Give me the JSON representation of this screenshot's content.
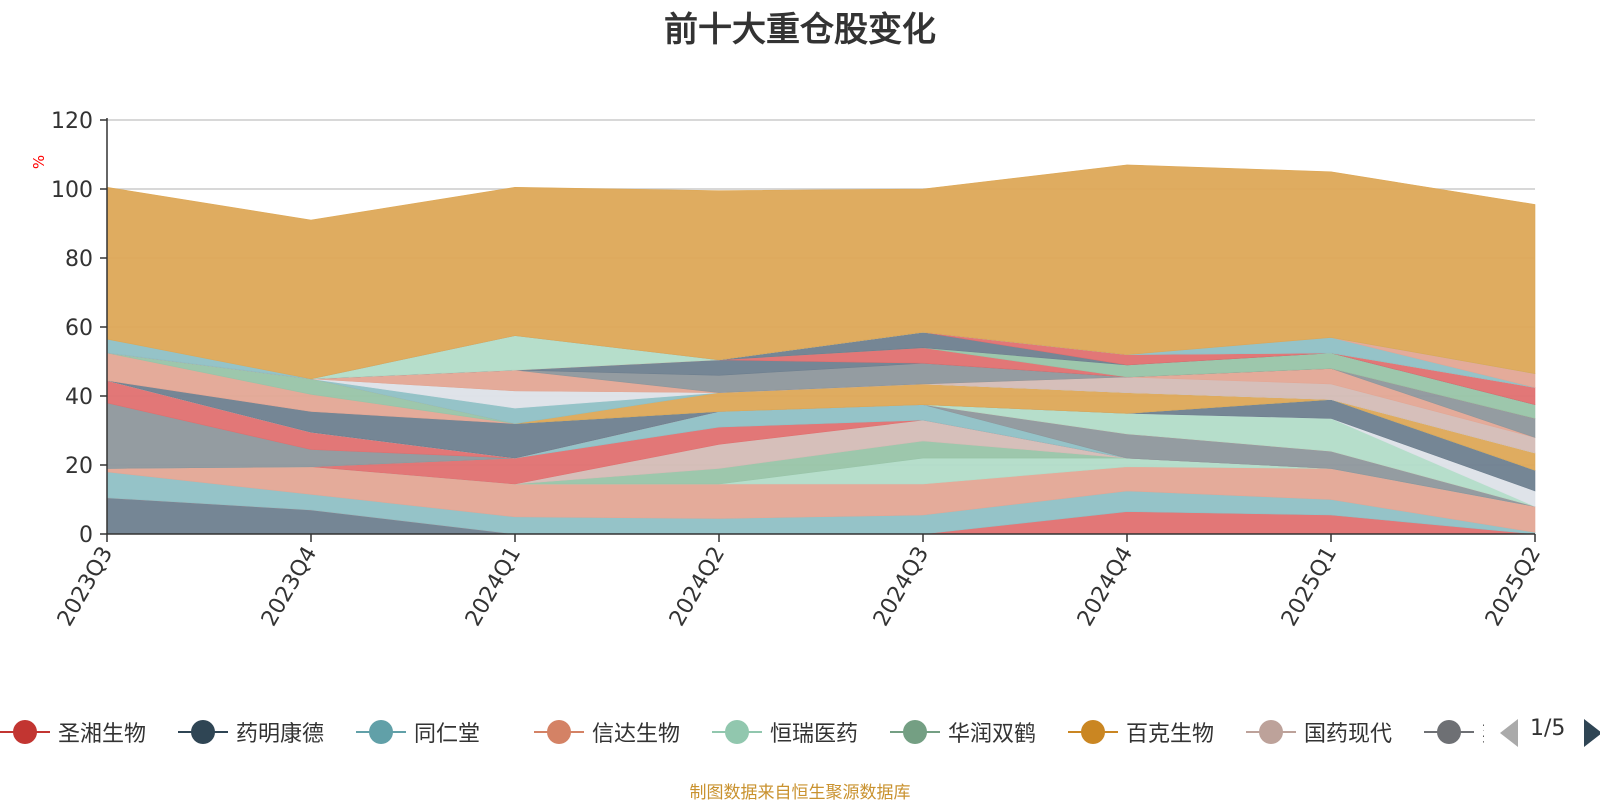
{
  "chart_data": {
    "type": "area",
    "title": "前十大重仓股变化",
    "ylabel": "%",
    "xlabel": "",
    "ylim": [
      0,
      120
    ],
    "yticks": [
      0,
      20,
      40,
      60,
      80,
      100,
      120
    ],
    "stacked": true,
    "grid": true,
    "legend_position": "bottom",
    "categories": [
      "2023Q3",
      "2023Q4",
      "2024Q1",
      "2024Q2",
      "2024Q3",
      "2024Q4",
      "2025Q1",
      "2025Q2"
    ],
    "series": [
      {
        "name": "",
        "color": "#6e7f8f",
        "values": [
          10.5,
          7,
          0,
          0,
          0,
          0,
          0,
          0
        ]
      },
      {
        "name": "",
        "color": "#e07070",
        "values": [
          0,
          0,
          0,
          0,
          0,
          6.5,
          5.5,
          0
        ]
      },
      {
        "name": "",
        "color": "#8fc0c5",
        "values": [
          7.5,
          4.5,
          5,
          4.5,
          5.5,
          6,
          4.5,
          0.5
        ]
      },
      {
        "name": "",
        "color": "#e3a795",
        "values": [
          1,
          8,
          9.5,
          10,
          9,
          7,
          9,
          7.5
        ]
      },
      {
        "name": "",
        "color": "#b2dcc8",
        "values": [
          0,
          0,
          0,
          0,
          7.5,
          2.5,
          0,
          0
        ]
      },
      {
        "name": "",
        "color": "#98c4a8",
        "values": [
          0,
          0,
          0,
          4.5,
          5,
          0,
          0,
          0
        ]
      },
      {
        "name": "",
        "color": "#d4bcb6",
        "values": [
          0,
          0,
          0,
          7,
          6,
          0,
          0,
          0
        ]
      },
      {
        "name": "",
        "color": "#e07070",
        "values": [
          0,
          0,
          7.5,
          5,
          0,
          0,
          0,
          0
        ]
      },
      {
        "name": "",
        "color": "#8fc0c5",
        "values": [
          0,
          0,
          0,
          4.5,
          4.5,
          0,
          0,
          0
        ]
      },
      {
        "name": "",
        "color": "#8e979c",
        "values": [
          19,
          5,
          0,
          0,
          0,
          7,
          5,
          0
        ]
      },
      {
        "name": "",
        "color": "#e07070",
        "values": [
          6.5,
          5,
          0,
          0,
          0,
          0,
          0,
          0
        ]
      },
      {
        "name": "",
        "color": "#b2dcc8",
        "values": [
          0,
          0,
          0,
          0,
          0,
          6,
          9.5,
          0
        ]
      },
      {
        "name": "",
        "color": "#dde2e8",
        "values": [
          0,
          0,
          0,
          0,
          0,
          0,
          0,
          4.5
        ]
      },
      {
        "name": "",
        "color": "#6e7f8f",
        "values": [
          0,
          6,
          10,
          0,
          0,
          0,
          5.5,
          6
        ]
      },
      {
        "name": "",
        "color": "#e3a795",
        "values": [
          8,
          5,
          0,
          0,
          0,
          0,
          0,
          0
        ]
      },
      {
        "name": "",
        "color": "#98c4a8",
        "values": [
          0,
          4.5,
          0,
          0,
          0,
          0,
          0,
          0
        ]
      },
      {
        "name": "",
        "color": "#dda857",
        "values": [
          0,
          0,
          0,
          5.5,
          6,
          6,
          0,
          5
        ]
      },
      {
        "name": "",
        "color": "#8fc0c5",
        "values": [
          0,
          0,
          4.5,
          0,
          0,
          0,
          0,
          0
        ]
      },
      {
        "name": "",
        "color": "#dde2e8",
        "values": [
          0,
          0,
          5,
          0,
          0,
          0,
          0,
          0
        ]
      },
      {
        "name": "",
        "color": "#d4bcb6",
        "values": [
          0,
          0,
          0,
          0,
          0,
          4.5,
          4.5,
          4.5
        ]
      },
      {
        "name": "",
        "color": "#e3a795",
        "values": [
          0,
          0,
          6,
          0,
          0,
          0,
          4.5,
          0
        ]
      },
      {
        "name": "",
        "color": "#8e979c",
        "values": [
          0,
          0,
          0,
          5,
          6,
          0,
          0,
          5.5
        ]
      },
      {
        "name": "",
        "color": "#6e7f8f",
        "values": [
          0,
          0,
          0,
          4.5,
          0,
          0,
          0,
          0
        ]
      },
      {
        "name": "",
        "color": "#e07070",
        "values": [
          0,
          0,
          0,
          0,
          4.5,
          0,
          0,
          0
        ]
      },
      {
        "name": "",
        "color": "#98c4a8",
        "values": [
          0,
          0,
          0,
          0,
          0,
          3.5,
          4.5,
          4
        ]
      },
      {
        "name": "",
        "color": "#6e7f8f",
        "values": [
          0,
          0,
          0,
          0,
          4.5,
          0,
          0,
          0
        ]
      },
      {
        "name": "",
        "color": "#e07070",
        "values": [
          0,
          0,
          0,
          0,
          0,
          3,
          0,
          5
        ]
      },
      {
        "name": "",
        "color": "#b2dcc8",
        "values": [
          0,
          0,
          10,
          0,
          0,
          0,
          0,
          0
        ]
      },
      {
        "name": "",
        "color": "#8fc0c5",
        "values": [
          0,
          0,
          0,
          0,
          0,
          0,
          4.5,
          0
        ]
      },
      {
        "name": "",
        "color": "#e3a795",
        "values": [
          0,
          0,
          0,
          0,
          0,
          0,
          0,
          4
        ]
      },
      {
        "name": "",
        "color": "#8fc0c5",
        "values": [
          4,
          0,
          0,
          0,
          0,
          0,
          0,
          0
        ]
      },
      {
        "name": "",
        "color": "#dda857",
        "values": [
          44,
          46,
          43,
          49,
          41.5,
          55,
          48,
          49
        ]
      }
    ]
  },
  "legend": {
    "items": [
      {
        "label": "圣湘生物",
        "color": "#c23531"
      },
      {
        "label": "药明康德",
        "color": "#2f4554"
      },
      {
        "label": "同仁堂",
        "color": "#61a0a8"
      },
      {
        "label": "信达生物",
        "color": "#d48265"
      },
      {
        "label": "恒瑞医药",
        "color": "#91c7ae"
      },
      {
        "label": "华润双鹤",
        "color": "#749f83"
      },
      {
        "label": "百克生物",
        "color": "#ca8622"
      },
      {
        "label": "国药现代",
        "color": "#bda29a"
      },
      {
        "label": "奕瑞科技",
        "color": "#6e7074"
      }
    ],
    "page_label": "1/5"
  },
  "colors": {
    "axis": "#333333",
    "grid": "#cccccc",
    "ylabel": "#ff0000",
    "source": "#c9922f"
  },
  "source_note": "制图数据来自恒生聚源数据库"
}
